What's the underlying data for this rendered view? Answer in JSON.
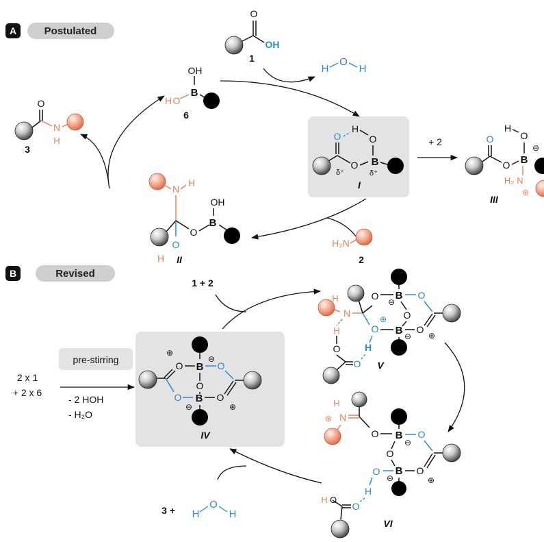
{
  "sections": {
    "a": {
      "letter": "A",
      "label": "Postulated"
    },
    "b": {
      "letter": "B",
      "label": "Revised"
    }
  },
  "labels": {
    "c1": "1",
    "c2": "2",
    "c3": "3",
    "c6": "6",
    "i": "I",
    "ii": "II",
    "iii": "III",
    "iv": "IV",
    "v": "V",
    "vi": "VI"
  },
  "atoms": {
    "O": "O",
    "OH": "OH",
    "H": "H",
    "N": "N",
    "B": "B",
    "H2N": "H₂N",
    "H2": "H₂",
    "delta": "δ⁺",
    "plus": "⊕",
    "minus": "⊖"
  },
  "reagents": {
    "plus2": "+ 2",
    "oneplustwo": "1 + 2",
    "twox1": "2 x 1",
    "twox6": "+ 2 x 6",
    "minus_hoh": "- 2 HOH",
    "minus_h2o": "- H₂O",
    "three_plus": "3 +"
  },
  "prestirring": "pre-stirring",
  "colors": {
    "oxygen_blue": "#2a8ad0",
    "nitrogen_orange": "#e8825a",
    "amine_sphere": "#f2a88a",
    "boron_sphere": "#000000",
    "carbon_sphere": "#9a9a9a",
    "panel_gray": "#e3e3e3",
    "section_tag": "#cfcfcf"
  }
}
